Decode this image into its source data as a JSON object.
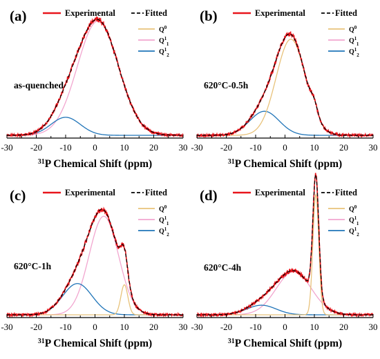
{
  "legend_labels": {
    "experimental": "Experimental",
    "fitted": "Fitted",
    "q0": "Q",
    "q0_sup": "0",
    "q11": "Q",
    "q11_sup": "1",
    "q11_sub": "1",
    "q12": "Q",
    "q12_sup": "1",
    "q12_sub": "2"
  },
  "colors": {
    "experimental": "#e8141b",
    "fitted": "#000000",
    "q0": "#e8c27a",
    "q11": "#f2a6cf",
    "q12": "#1f74b8"
  },
  "chart_data": [
    {
      "type": "line",
      "panel_label": "(a)",
      "sample": "as-quenched",
      "xlabel_sup": "31",
      "xlabel": "P Chemical Shift (ppm)",
      "xlim": [
        -30,
        30
      ],
      "xticks": [
        -30,
        -20,
        -10,
        0,
        10,
        20,
        30
      ],
      "ylim": [
        0,
        1.08
      ],
      "series": [
        {
          "name": "Q0",
          "components": []
        },
        {
          "name": "Q11",
          "components": [
            {
              "center": 1.0,
              "height": 0.95,
              "sigma": 7.0
            }
          ]
        },
        {
          "name": "Q12",
          "components": [
            {
              "center": -10.0,
              "height": 0.15,
              "sigma": 5.0
            }
          ]
        }
      ]
    },
    {
      "type": "line",
      "panel_label": "(b)",
      "sample": "620°C-0.5h",
      "xlabel_sup": "31",
      "xlabel": "P Chemical Shift (ppm)",
      "xlim": [
        -30,
        30
      ],
      "xticks": [
        -30,
        -20,
        -10,
        0,
        10,
        20,
        30
      ],
      "ylim": [
        0,
        1.08
      ],
      "series": [
        {
          "name": "Q0",
          "components": [
            {
              "center": 2.0,
              "height": 0.8,
              "sigma": 5.0
            },
            {
              "center": 10.0,
              "height": 0.08,
              "sigma": 1.2
            }
          ]
        },
        {
          "name": "Q11",
          "components": []
        },
        {
          "name": "Q12",
          "components": [
            {
              "center": -7.0,
              "height": 0.2,
              "sigma": 5.0
            }
          ]
        }
      ]
    },
    {
      "type": "line",
      "panel_label": "(c)",
      "sample": "620°C-1h",
      "xlabel_sup": "31",
      "xlabel": "P Chemical Shift (ppm)",
      "xlim": [
        -30,
        30
      ],
      "xticks": [
        -30,
        -20,
        -10,
        0,
        10,
        20,
        30
      ],
      "ylim": [
        0,
        1.08
      ],
      "series": [
        {
          "name": "Q0",
          "components": [
            {
              "center": 10.0,
              "height": 0.25,
              "sigma": 1.2
            }
          ]
        },
        {
          "name": "Q11",
          "components": [
            {
              "center": 3.0,
              "height": 0.82,
              "sigma": 5.0
            }
          ]
        },
        {
          "name": "Q12",
          "components": [
            {
              "center": -6.0,
              "height": 0.26,
              "sigma": 5.0
            }
          ]
        }
      ]
    },
    {
      "type": "line",
      "panel_label": "(d)",
      "sample": "620°C-4h",
      "xlabel_sup": "31",
      "xlabel": "P Chemical Shift (ppm)",
      "xlim": [
        -30,
        30
      ],
      "xticks": [
        -30,
        -20,
        -10,
        0,
        10,
        20,
        30
      ],
      "ylim": [
        0,
        1.08
      ],
      "series": [
        {
          "name": "Q0",
          "components": [
            {
              "center": 10.5,
              "height": 1.0,
              "sigma": 1.0
            }
          ]
        },
        {
          "name": "Q11",
          "components": [
            {
              "center": 3.0,
              "height": 0.36,
              "sigma": 6.0
            }
          ]
        },
        {
          "name": "Q12",
          "components": [
            {
              "center": -8.0,
              "height": 0.08,
              "sigma": 5.0
            }
          ]
        }
      ]
    }
  ]
}
